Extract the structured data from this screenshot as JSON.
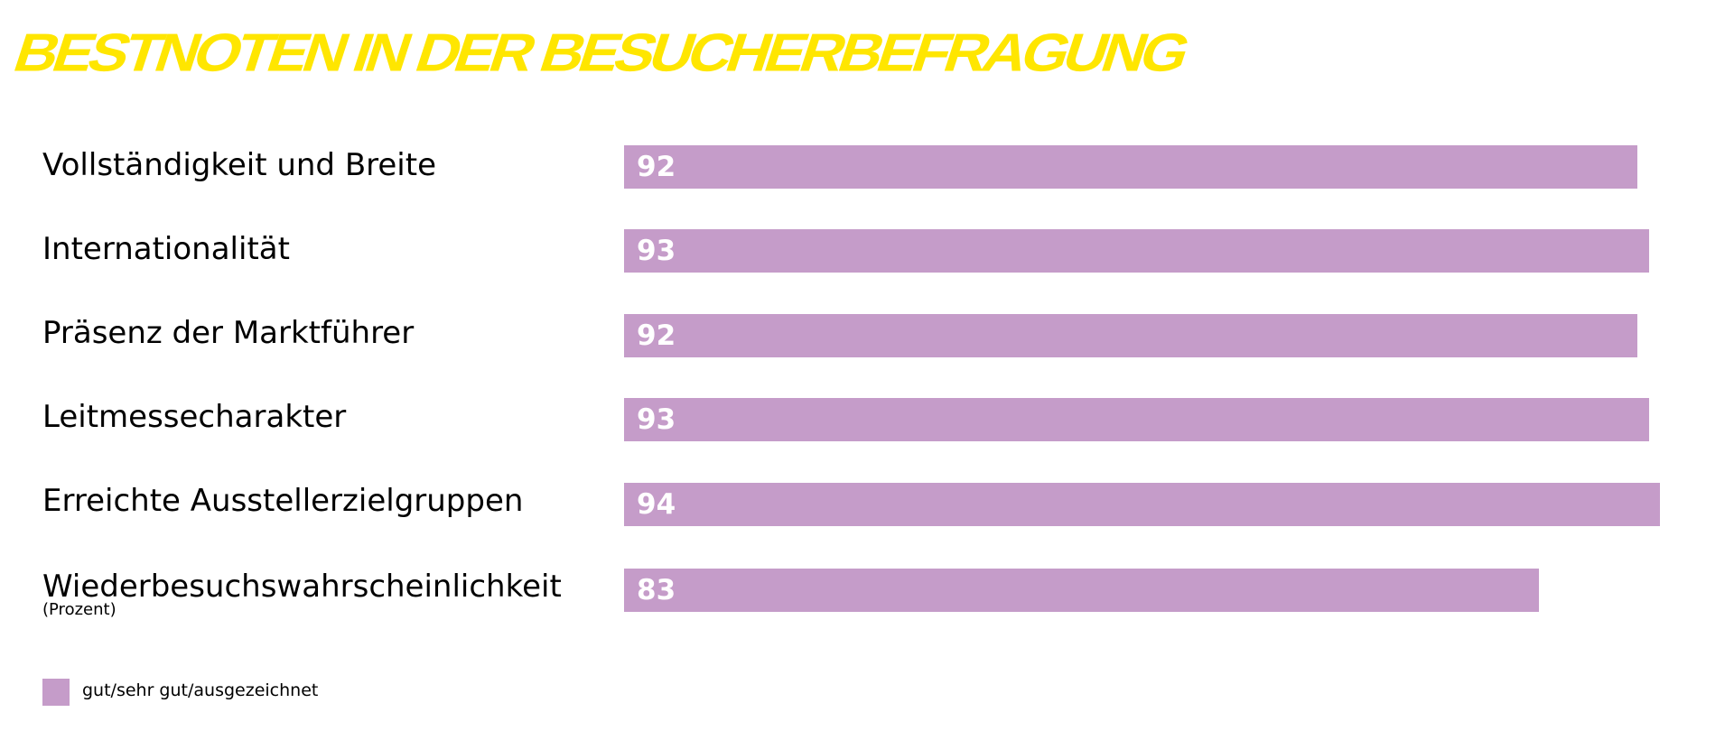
{
  "title": "BESTNOTEN IN DER BESUCHERBEFRAGUNG",
  "colors": {
    "title": "#ffe600",
    "bar": "#c59cc9",
    "bar_value_text": "#ffffff",
    "label_text": "#000000"
  },
  "chart_data": {
    "type": "bar",
    "orientation": "horizontal",
    "title": "BESTNOTEN IN DER BESUCHERBEFRAGUNG",
    "unit_note": "(Prozent)",
    "categories": [
      "Vollständigkeit und Breite",
      "Internationalität",
      "Präsenz der Marktführer",
      "Leitmessecharakter",
      "Erreichte Ausstellerzielgruppen",
      "Wiederbesuchswahrscheinlichkeit"
    ],
    "series": [
      {
        "name": "gut/sehr gut/ausgezeichnet",
        "values": [
          92,
          93,
          92,
          93,
          94,
          83
        ]
      }
    ],
    "grid": false,
    "legend_position": "bottom-left"
  }
}
